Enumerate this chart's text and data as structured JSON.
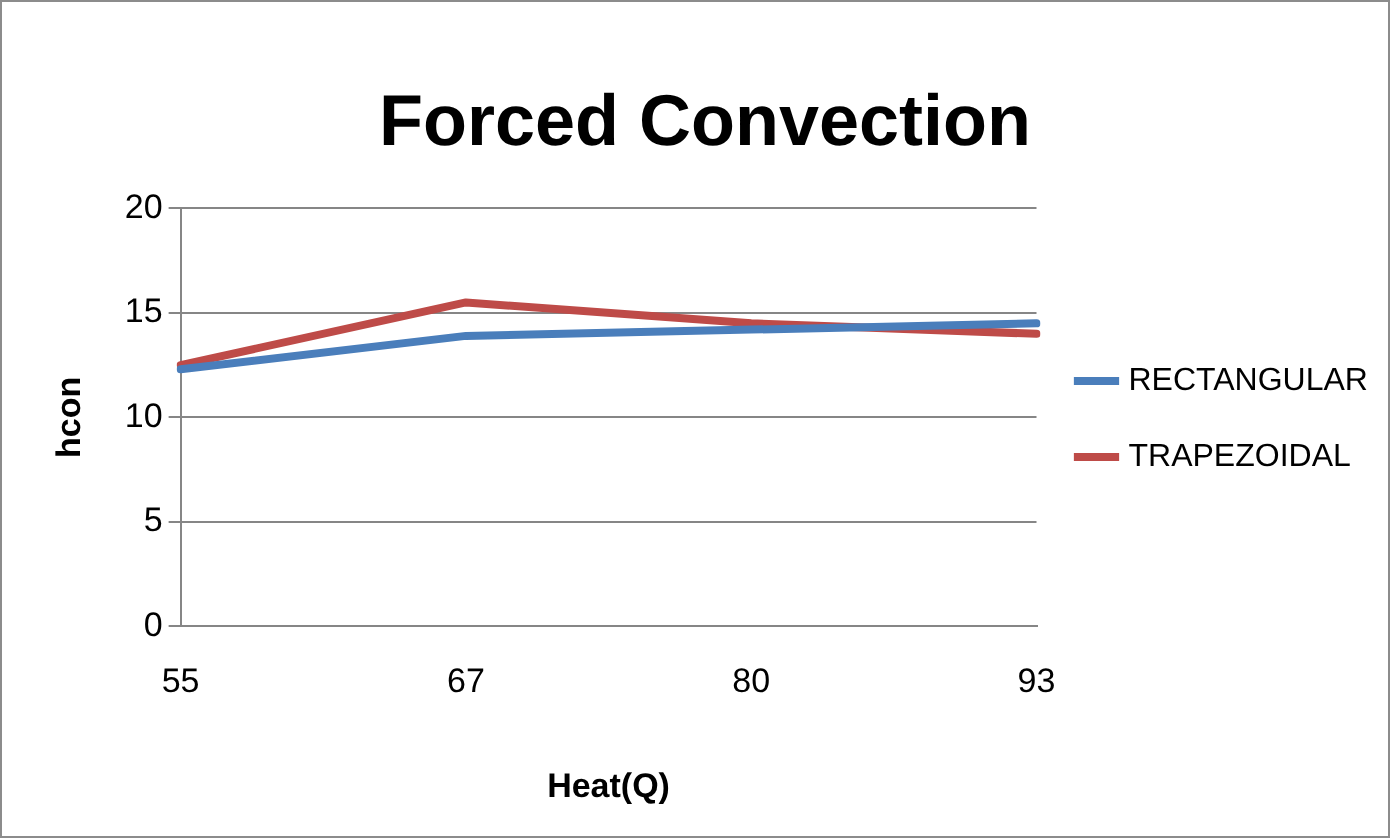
{
  "chart_data": {
    "type": "line",
    "title": "Forced Convection",
    "xlabel": "Heat(Q)",
    "ylabel": "hcon",
    "categories": [
      "55",
      "67",
      "80",
      "93"
    ],
    "series": [
      {
        "name": "RECTANGULAR",
        "color": "#4a7ebb",
        "values": [
          12.3,
          13.9,
          14.2,
          14.5
        ]
      },
      {
        "name": "TRAPEZOIDAL",
        "color": "#be4b48",
        "values": [
          12.5,
          15.5,
          14.5,
          14.0
        ]
      }
    ],
    "ylim": [
      0,
      20
    ],
    "yticks": [
      0,
      5,
      10,
      15,
      20
    ],
    "grid": "y",
    "legend": "right",
    "marker": "none",
    "line_style": "solid"
  }
}
